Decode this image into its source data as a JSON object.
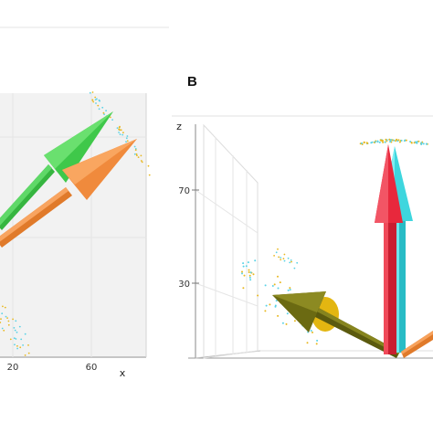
{
  "chart_data": [
    {
      "type": "scatter",
      "panel_label": "",
      "description_type": "3d-vector-plot",
      "xlabel": "x",
      "x_ticks": [
        "20",
        "60"
      ],
      "colors": {
        "scatter_cyan": "#5ad2e6",
        "scatter_yellow": "#e8b820",
        "arrow_green": "#3fc84a",
        "arrow_orange": "#f08a3c"
      }
    },
    {
      "type": "scatter",
      "panel_label": "B",
      "description_type": "3d-vector-plot",
      "zlabel": "z",
      "z_ticks": [
        "70",
        "30"
      ],
      "colors": {
        "scatter_cyan": "#5ad2e6",
        "scatter_yellow": "#e8b820",
        "arrow_red": "#e8283c",
        "arrow_cyan": "#3ed6de",
        "arrow_olive": "#6b6a12",
        "arrow_orange": "#e07a2a"
      }
    }
  ]
}
